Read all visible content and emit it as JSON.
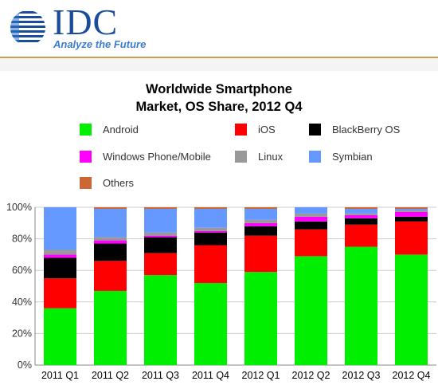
{
  "header": {
    "logo_text": "IDC",
    "tagline": "Analyze the Future"
  },
  "chart_data": {
    "type": "bar",
    "stacked": true,
    "title": "Worldwide Smartphone Market, OS Share, 2012 Q4",
    "title_lines": [
      "Worldwide Smartphone",
      "Market, OS Share, 2012 Q4"
    ],
    "xlabel": "",
    "ylabel": "",
    "ylim": [
      0,
      100
    ],
    "yticks": [
      "0%",
      "20%",
      "40%",
      "60%",
      "80%",
      "100%"
    ],
    "grid": true,
    "legend_position": "top",
    "categories": [
      "2011 Q1",
      "2011 Q2",
      "2011 Q3",
      "2011 Q4",
      "2012 Q1",
      "2012 Q2",
      "2012 Q3",
      "2012 Q4"
    ],
    "series": [
      {
        "name": "Android",
        "color": "#00ee00",
        "values": [
          36,
          47,
          57,
          52,
          59,
          69,
          75,
          70
        ]
      },
      {
        "name": "iOS",
        "color": "#ff0000",
        "values": [
          19,
          19,
          14,
          24,
          23,
          17,
          14,
          21
        ]
      },
      {
        "name": "BlackBerry OS",
        "color": "#000000",
        "values": [
          13,
          11,
          10,
          8,
          6,
          5,
          4,
          3
        ]
      },
      {
        "name": "Windows Phone/Mobile",
        "color": "#ff00ff",
        "values": [
          2,
          2,
          1,
          1,
          2,
          3,
          2,
          3
        ]
      },
      {
        "name": "Linux",
        "color": "#999999",
        "values": [
          3,
          2,
          2,
          2,
          2,
          2,
          1,
          1
        ]
      },
      {
        "name": "Symbian",
        "color": "#6699ff",
        "values": [
          27,
          18,
          15,
          12,
          7,
          4,
          3,
          1
        ]
      },
      {
        "name": "Others",
        "color": "#cc6633",
        "values": [
          0,
          1,
          1,
          1,
          1,
          0,
          1,
          1
        ]
      }
    ]
  }
}
